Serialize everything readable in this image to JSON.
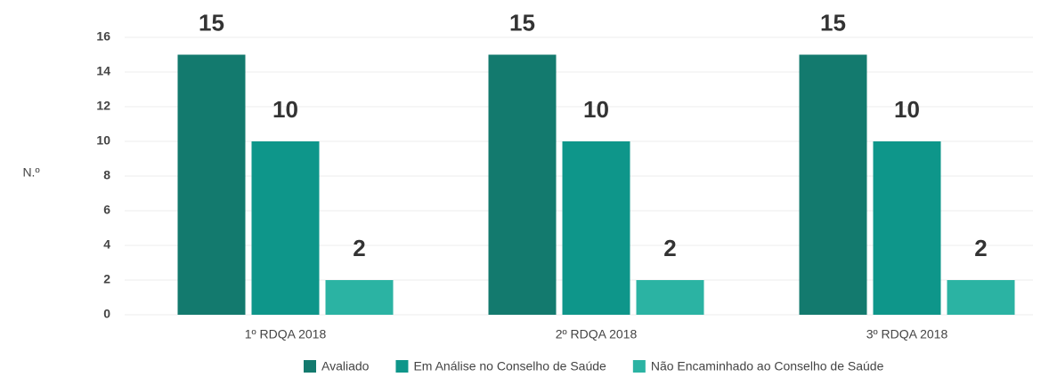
{
  "chart_data": {
    "type": "bar",
    "y_label": "N.º",
    "categories": [
      "1º RDQA 2018",
      "2º RDQA 2018",
      "3º RDQA 2018"
    ],
    "series": [
      {
        "name": "Avaliado",
        "color": "#137a6e",
        "values": [
          15,
          15,
          15
        ]
      },
      {
        "name": "Em Análise no Conselho de Saúde",
        "color": "#0e968a",
        "values": [
          10,
          10,
          10
        ]
      },
      {
        "name": "Não Encaminhado ao Conselho de Saúde",
        "color": "#2bb3a3",
        "values": [
          2,
          2,
          2
        ]
      }
    ],
    "ylim": [
      0,
      16
    ],
    "yticks": [
      0,
      2,
      4,
      6,
      8,
      10,
      12,
      14,
      16
    ],
    "grid": true,
    "legend": "bottom"
  }
}
